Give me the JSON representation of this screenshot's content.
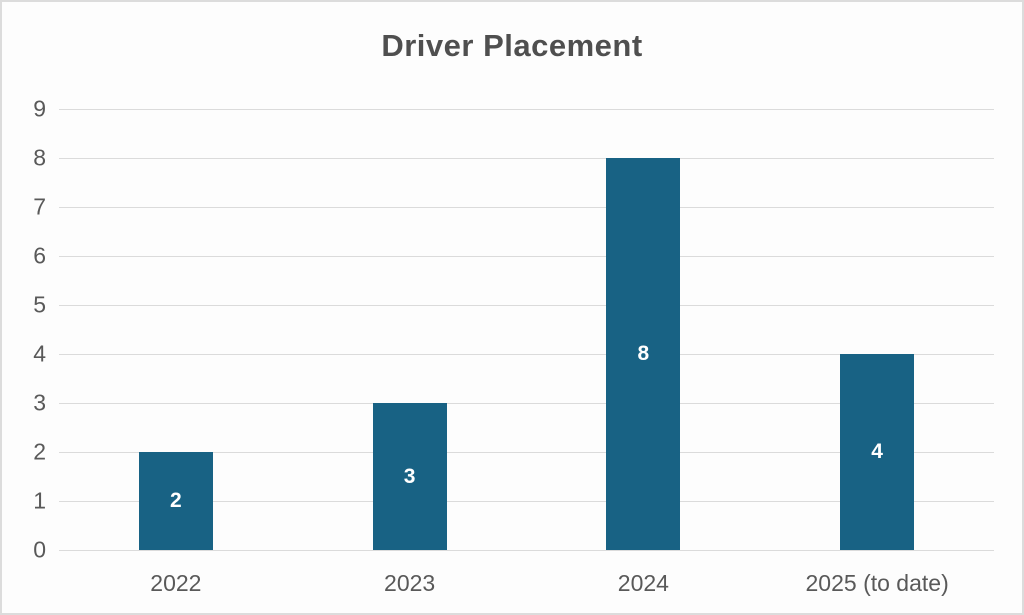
{
  "chart_data": {
    "type": "bar",
    "title": "Driver Placement",
    "categories": [
      "2022",
      "2023",
      "2024",
      "2025 (to date)"
    ],
    "values": [
      2,
      3,
      8,
      4
    ],
    "data_labels": [
      "2",
      "3",
      "8",
      "4"
    ],
    "y_ticks": [
      0,
      1,
      2,
      3,
      4,
      5,
      6,
      7,
      8,
      9
    ],
    "ylim": [
      0,
      9
    ],
    "xlabel": "",
    "ylabel": "",
    "grid": true,
    "legend": "none",
    "data_label_position": "center",
    "colors": {
      "bar": "#186284",
      "data_label": "#ffffff",
      "axis_label": "#595959",
      "title": "#4f4f4f",
      "gridline": "#dbdbdb",
      "background": "#fdfdfd",
      "border": "#dcdcdc"
    }
  }
}
